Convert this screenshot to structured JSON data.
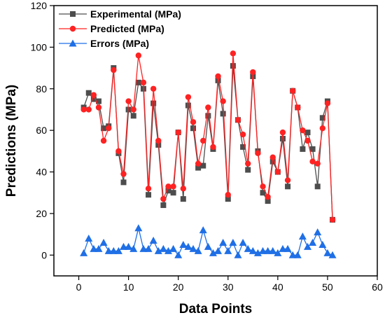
{
  "chart_data": {
    "type": "line",
    "xlabel": "Data Points",
    "ylabel": "Predictions (MPa)",
    "xlim": [
      -5,
      60
    ],
    "ylim": [
      -10,
      120
    ],
    "xticks": [
      0,
      10,
      20,
      30,
      40,
      50,
      60
    ],
    "yticks": [
      0,
      20,
      40,
      60,
      80,
      100,
      120
    ],
    "grid": false,
    "legend": "top-left",
    "x": [
      1,
      2,
      3,
      4,
      5,
      6,
      7,
      8,
      9,
      10,
      11,
      12,
      13,
      14,
      15,
      16,
      17,
      18,
      19,
      20,
      21,
      22,
      23,
      24,
      25,
      26,
      27,
      28,
      29,
      30,
      31,
      32,
      33,
      34,
      35,
      36,
      37,
      38,
      39,
      40,
      41,
      42,
      43,
      44,
      45,
      46,
      47,
      48,
      49,
      50,
      51
    ],
    "series": [
      {
        "name": "Experimental (MPa)",
        "color": "#4d4d4d",
        "marker": "square",
        "values": [
          71,
          78,
          75,
          74,
          61,
          62,
          90,
          49,
          35,
          70,
          67,
          83,
          80,
          29,
          73,
          53,
          24,
          31,
          30,
          59,
          27,
          72,
          61,
          42,
          43,
          67,
          51,
          84,
          68,
          27,
          91,
          65,
          52,
          41,
          86,
          50,
          30,
          26,
          45,
          40,
          56,
          33,
          79,
          71,
          51,
          59,
          51,
          33,
          66,
          74,
          17
        ]
      },
      {
        "name": "Predicted (MPa)",
        "color": "#ff2222",
        "marker": "circle",
        "values": [
          70,
          70,
          77,
          71,
          55,
          61,
          89,
          50,
          39,
          74,
          70,
          96,
          83,
          32,
          80,
          55,
          27,
          33,
          33,
          59,
          32,
          76,
          64,
          44,
          55,
          71,
          52,
          86,
          74,
          29,
          97,
          65,
          58,
          44,
          88,
          49,
          33,
          28,
          47,
          40,
          59,
          36,
          79,
          71,
          60,
          55,
          45,
          44,
          61,
          73,
          17
        ]
      },
      {
        "name": "Errors (MPa)",
        "color": "#1f6fe6",
        "marker": "triangle",
        "values": [
          1,
          8,
          3,
          3,
          6,
          2,
          2,
          2,
          4,
          4,
          3,
          13,
          3,
          3,
          7,
          2,
          3,
          2,
          3,
          0,
          5,
          4,
          3,
          2,
          12,
          4,
          1,
          2,
          6,
          2,
          6,
          0,
          6,
          3,
          2,
          1,
          2,
          2,
          2,
          1,
          3,
          3,
          0,
          0,
          9,
          4,
          6,
          11,
          5,
          1,
          0
        ]
      }
    ]
  }
}
